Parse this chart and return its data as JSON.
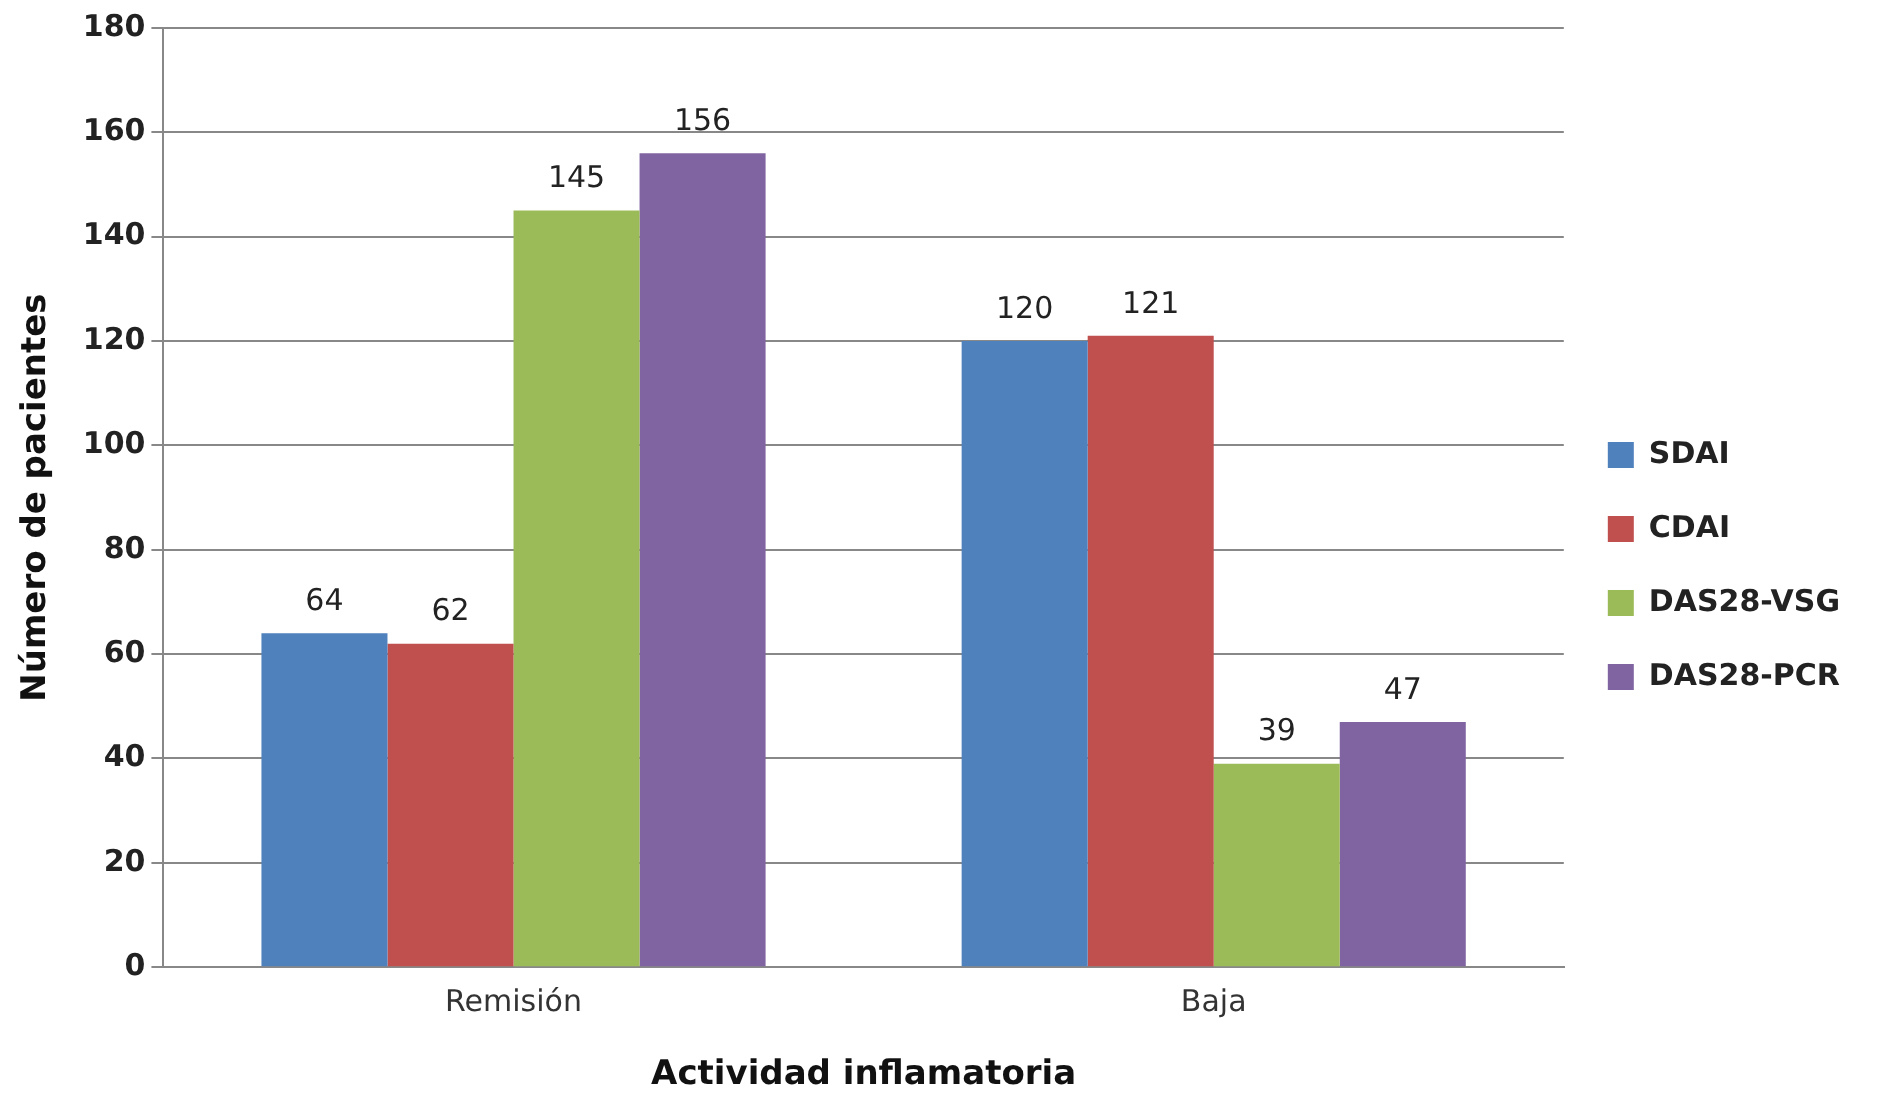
{
  "chart_data": {
    "type": "bar",
    "xlabel": "Actividad inflamatoria",
    "ylabel": "Número de pacientes",
    "categories": [
      "Remisión",
      "Baja"
    ],
    "series": [
      {
        "name": "SDAI",
        "color": "#4f81bd",
        "values": [
          64,
          120
        ]
      },
      {
        "name": "CDAI",
        "color": "#c0504d",
        "values": [
          62,
          121
        ]
      },
      {
        "name": "DAS28-VSG",
        "color": "#9bbb59",
        "values": [
          145,
          39
        ]
      },
      {
        "name": "DAS28-PCR",
        "color": "#8064a2",
        "values": [
          156,
          47
        ]
      }
    ],
    "ylim": [
      0,
      180
    ],
    "yticks": [
      0,
      20,
      40,
      60,
      80,
      100,
      120,
      140,
      160,
      180
    ],
    "grid": "y",
    "legend": "right",
    "data_labels": true
  }
}
